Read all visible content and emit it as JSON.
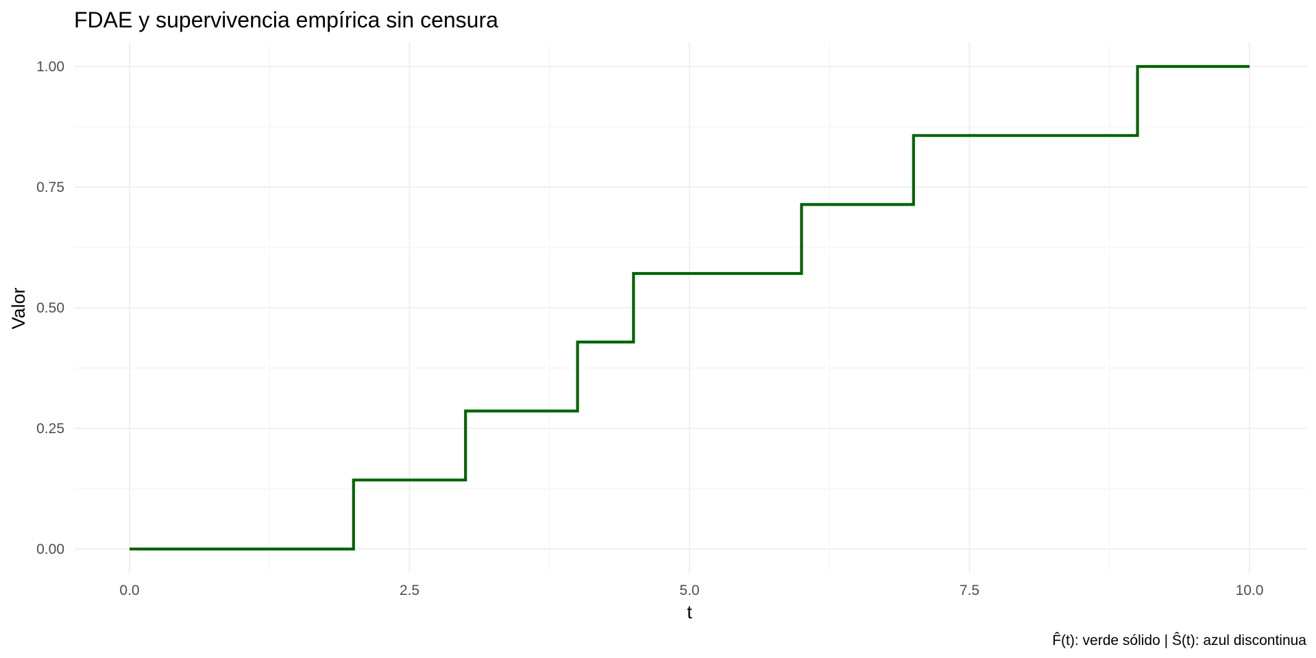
{
  "chart_data": {
    "type": "line",
    "step": true,
    "title": "FDAE y supervivencia empírica sin censura",
    "xlabel": "t",
    "ylabel": "Valor",
    "caption": "F̂(t): verde sólido | Ŝ(t): azul discontinua",
    "xlim": [
      0,
      10
    ],
    "ylim": [
      0,
      1
    ],
    "x_ticks": [
      0,
      2.5,
      5,
      7.5,
      10
    ],
    "x_tick_labels": [
      "0.0",
      "2.5",
      "5.0",
      "7.5",
      "10.0"
    ],
    "y_ticks": [
      0,
      0.25,
      0.5,
      0.75,
      1
    ],
    "y_tick_labels": [
      "0.00",
      "0.25",
      "0.50",
      "0.75",
      "1.00"
    ],
    "grid": true,
    "legend": "none",
    "series": [
      {
        "color": "#006400",
        "line_style": "solid",
        "x": [
          0,
          2,
          3,
          4,
          4.5,
          6,
          7,
          9,
          10
        ],
        "y": [
          0,
          0.143,
          0.286,
          0.429,
          0.571,
          0.714,
          0.857,
          1.0,
          1.0
        ]
      }
    ]
  }
}
